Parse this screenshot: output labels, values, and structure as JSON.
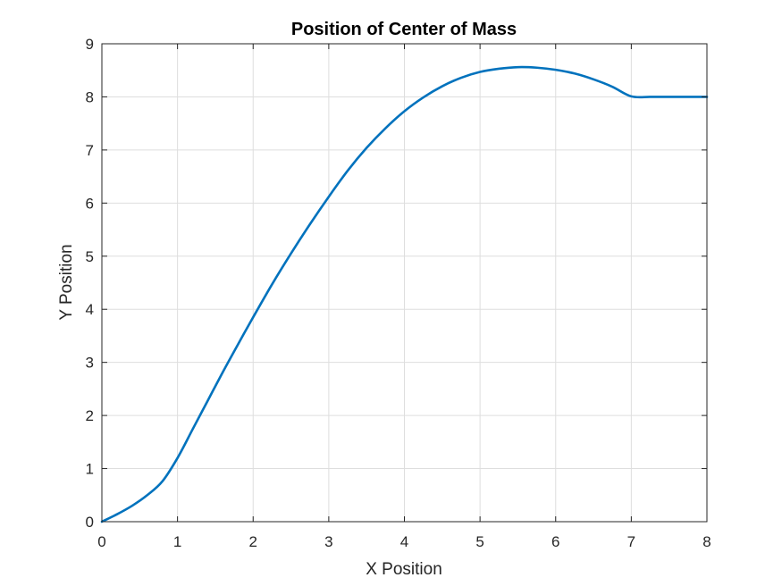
{
  "chart_data": {
    "type": "line",
    "title": "Position of Center of Mass",
    "xlabel": "X Position",
    "ylabel": "Y Position",
    "xlim": [
      0,
      8
    ],
    "ylim": [
      0,
      9
    ],
    "xticks": [
      0,
      1,
      2,
      3,
      4,
      5,
      6,
      7,
      8
    ],
    "yticks": [
      0,
      1,
      2,
      3,
      4,
      5,
      6,
      7,
      8,
      9
    ],
    "grid": true,
    "legend": "none",
    "series": [
      {
        "color": "#0072bd",
        "x": [
          0,
          0.2,
          0.4,
          0.6,
          0.8,
          1.0,
          1.2,
          1.4,
          1.6,
          1.8,
          2.0,
          2.25,
          2.5,
          2.75,
          3.0,
          3.25,
          3.5,
          3.75,
          4.0,
          4.25,
          4.5,
          4.75,
          5.0,
          5.25,
          5.5,
          5.75,
          6.0,
          6.25,
          6.5,
          6.75,
          7.0,
          7.25,
          7.5,
          7.75,
          8.0
        ],
        "y": [
          0,
          0.14,
          0.3,
          0.5,
          0.76,
          1.2,
          1.74,
          2.28,
          2.82,
          3.34,
          3.85,
          4.47,
          5.05,
          5.6,
          6.12,
          6.61,
          7.04,
          7.41,
          7.73,
          7.99,
          8.2,
          8.36,
          8.47,
          8.53,
          8.56,
          8.55,
          8.51,
          8.44,
          8.33,
          8.19,
          8.01,
          8.0,
          8.0,
          8.0,
          8.0
        ]
      }
    ]
  }
}
